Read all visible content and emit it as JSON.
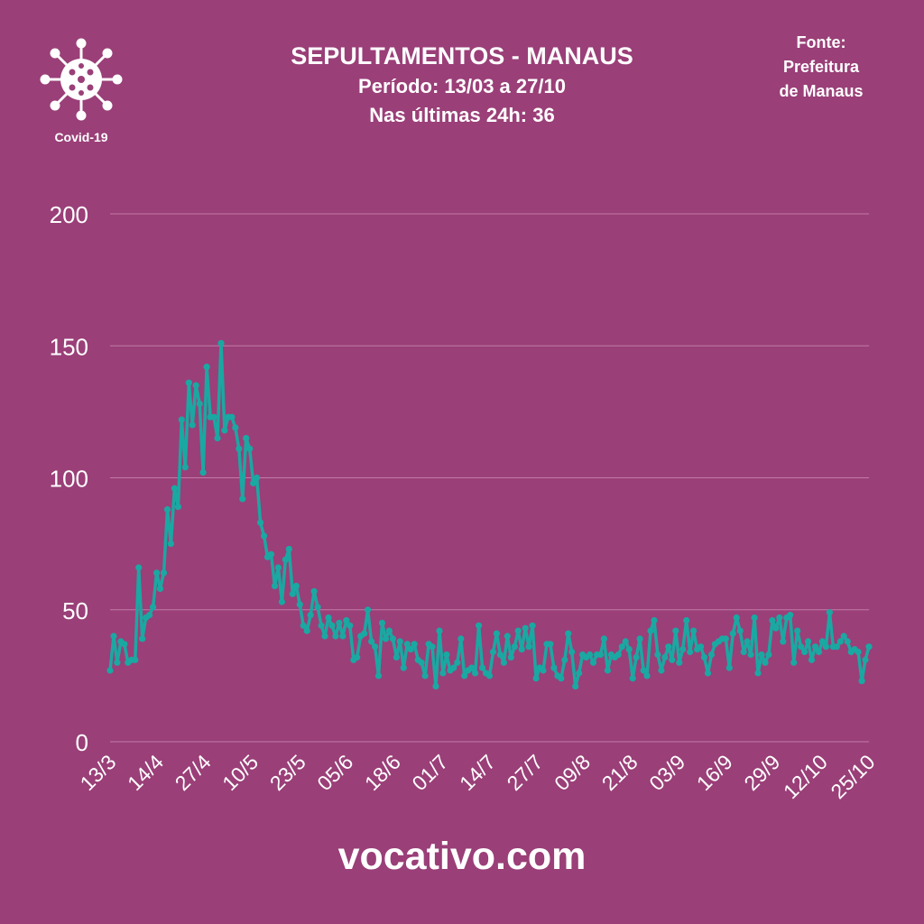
{
  "header": {
    "title": "SEPULTAMENTOS - MANAUS",
    "period": "Período: 13/03 a 27/10",
    "last24h": "Nas últimas 24h: 36"
  },
  "source": {
    "line1": "Fonte:",
    "line2": "Prefeitura",
    "line3": "de Manaus"
  },
  "logo": {
    "label": "Covid-19",
    "icon": "virus-icon"
  },
  "footer": {
    "site": "vocativo.com"
  },
  "colors": {
    "background": "#9a3f78",
    "line": "#1aa8a2",
    "grid": "#c27aa8",
    "text": "#ffffff"
  },
  "chart_data": {
    "type": "line",
    "title": "SEPULTAMENTOS - MANAUS",
    "xlabel": "",
    "ylabel": "",
    "ylim": [
      0,
      200
    ],
    "yticks": [
      0,
      50,
      100,
      150,
      200
    ],
    "grid": true,
    "x_start": "13/3",
    "x_tick_labels": [
      "13/3",
      "14/4",
      "27/4",
      "10/5",
      "23/5",
      "05/6",
      "18/6",
      "01/7",
      "14/7",
      "27/7",
      "09/8",
      "21/8",
      "03/9",
      "16/9",
      "29/9",
      "12/10",
      "25/10"
    ],
    "values": [
      27,
      40,
      30,
      38,
      37,
      30,
      31,
      31,
      66,
      39,
      47,
      48,
      51,
      64,
      58,
      64,
      88,
      75,
      96,
      89,
      122,
      104,
      136,
      120,
      135,
      128,
      102,
      142,
      123,
      123,
      115,
      151,
      118,
      123,
      123,
      119,
      111,
      92,
      115,
      111,
      98,
      100,
      83,
      78,
      70,
      71,
      59,
      66,
      53,
      69,
      73,
      56,
      59,
      52,
      44,
      42,
      48,
      57,
      51,
      44,
      40,
      47,
      44,
      40,
      45,
      40,
      46,
      44,
      31,
      32,
      40,
      41,
      50,
      38,
      36,
      25,
      45,
      39,
      42,
      39,
      32,
      38,
      28,
      37,
      35,
      37,
      31,
      30,
      25,
      37,
      36,
      21,
      42,
      26,
      33,
      27,
      28,
      30,
      39,
      25,
      27,
      28,
      26,
      44,
      28,
      26,
      25,
      34,
      41,
      33,
      30,
      40,
      32,
      36,
      42,
      35,
      43,
      36,
      44,
      24,
      28,
      27,
      37,
      37,
      28,
      25,
      24,
      31,
      41,
      34,
      21,
      26,
      33,
      32,
      33,
      30,
      33,
      33,
      39,
      27,
      33,
      32,
      33,
      36,
      38,
      35,
      24,
      32,
      39,
      27,
      25,
      42,
      46,
      33,
      27,
      32,
      36,
      31,
      42,
      30,
      35,
      46,
      34,
      42,
      35,
      36,
      32,
      26,
      33,
      37,
      38,
      39,
      39,
      28,
      41,
      47,
      42,
      34,
      38,
      33,
      47,
      26,
      33,
      30,
      33,
      46,
      43,
      47,
      38,
      47,
      48,
      30,
      42,
      36,
      34,
      38,
      31,
      36,
      34,
      38,
      36,
      49,
      36,
      36,
      38,
      40,
      38,
      34,
      35,
      34,
      23,
      31,
      36
    ]
  }
}
